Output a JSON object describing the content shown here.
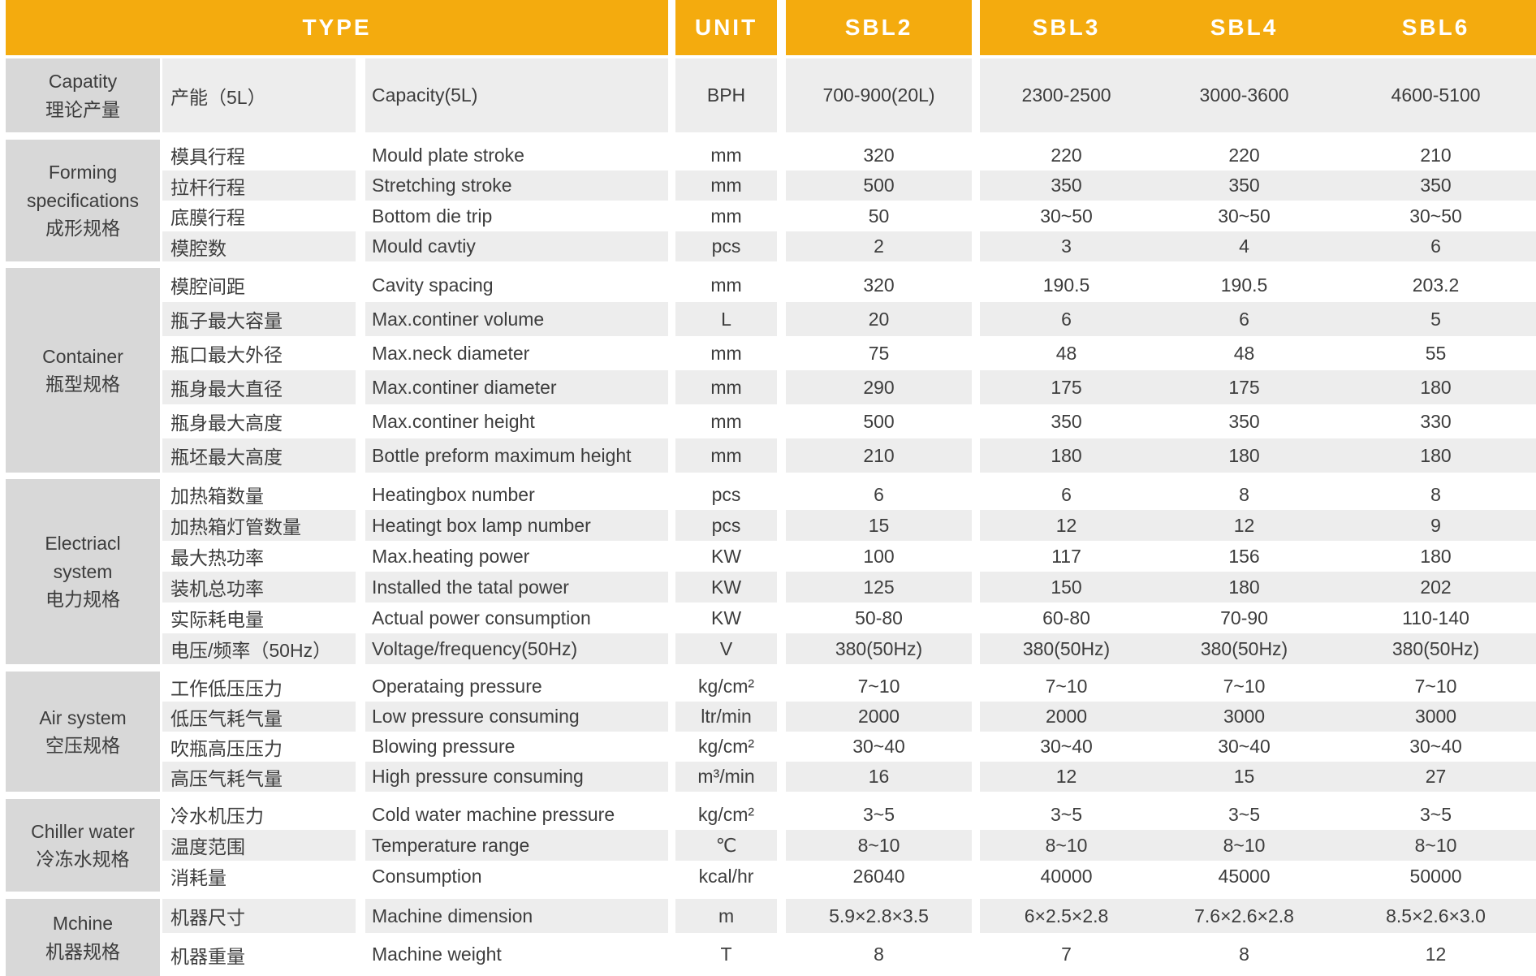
{
  "colors": {
    "accent": "#F4AB0E",
    "category_bg": "#D8D8D8",
    "row_stripe_bg": "#EDEDED",
    "header_text": "#FFFFFF",
    "body_text": "#3D3D3D"
  },
  "header": {
    "type_label": "TYPE",
    "unit_label": "UNIT",
    "models": [
      "SBL2",
      "SBL3",
      "SBL4",
      "SBL6"
    ]
  },
  "groups": [
    {
      "name_en": "Capatity",
      "name_cn": "理论产量",
      "rows": [
        {
          "cn": "产能（5L）",
          "en": "Capacity(5L)",
          "unit": "BPH",
          "values": [
            "700-900(20L)",
            "2300-2500",
            "3000-3600",
            "4600-5100"
          ]
        }
      ]
    },
    {
      "name_en": "Forming specifications",
      "name_cn": "成形规格",
      "rows": [
        {
          "cn": "模具行程",
          "en": "Mould plate stroke",
          "unit": "mm",
          "values": [
            "320",
            "220",
            "220",
            "210"
          ]
        },
        {
          "cn": "拉杆行程",
          "en": "Stretching stroke",
          "unit": "mm",
          "values": [
            "500",
            "350",
            "350",
            "350"
          ]
        },
        {
          "cn": "底膜行程",
          "en": "Bottom die trip",
          "unit": "mm",
          "values": [
            "50",
            "30~50",
            "30~50",
            "30~50"
          ]
        },
        {
          "cn": "模腔数",
          "en": "Mould cavtiy",
          "unit": "pcs",
          "values": [
            "2",
            "3",
            "4",
            "6"
          ]
        }
      ]
    },
    {
      "name_en": "Container",
      "name_cn": "瓶型规格",
      "rows": [
        {
          "cn": "模腔间距",
          "en": "Cavity spacing",
          "unit": "mm",
          "values": [
            "320",
            "190.5",
            "190.5",
            "203.2"
          ]
        },
        {
          "cn": "瓶子最大容量",
          "en": "Max.continer volume",
          "unit": "L",
          "values": [
            "20",
            "6",
            "6",
            "5"
          ]
        },
        {
          "cn": "瓶口最大外径",
          "en": "Max.neck diameter",
          "unit": "mm",
          "values": [
            "75",
            "48",
            "48",
            "55"
          ]
        },
        {
          "cn": "瓶身最大直径",
          "en": "Max.continer diameter",
          "unit": "mm",
          "values": [
            "290",
            "175",
            "175",
            "180"
          ]
        },
        {
          "cn": "瓶身最大高度",
          "en": "Max.continer height",
          "unit": "mm",
          "values": [
            "500",
            "350",
            "350",
            "330"
          ]
        },
        {
          "cn": "瓶坯最大高度",
          "en": "Bottle preform maximum height",
          "unit": "mm",
          "values": [
            "210",
            "180",
            "180",
            "180"
          ]
        }
      ]
    },
    {
      "name_en": "Electriacl system",
      "name_cn": "电力规格",
      "rows": [
        {
          "cn": "加热箱数量",
          "en": "Heatingbox number",
          "unit": "pcs",
          "values": [
            "6",
            "6",
            "8",
            "8"
          ]
        },
        {
          "cn": "加热箱灯管数量",
          "en": "Heatingt box lamp number",
          "unit": "pcs",
          "values": [
            "15",
            "12",
            "12",
            "9"
          ]
        },
        {
          "cn": "最大热功率",
          "en": "Max.heating power",
          "unit": "KW",
          "values": [
            "100",
            "117",
            "156",
            "180"
          ]
        },
        {
          "cn": "装机总功率",
          "en": "Installed the tatal power",
          "unit": "KW",
          "values": [
            "125",
            "150",
            "180",
            "202"
          ]
        },
        {
          "cn": "实际耗电量",
          "en": "Actual power consumption",
          "unit": "KW",
          "values": [
            "50-80",
            "60-80",
            "70-90",
            "110-140"
          ]
        },
        {
          "cn": "电压/频率（50Hz）",
          "en": "Voltage/frequency(50Hz)",
          "unit": "V",
          "values": [
            "380(50Hz)",
            "380(50Hz)",
            "380(50Hz)",
            "380(50Hz)"
          ]
        }
      ]
    },
    {
      "name_en": "Air system",
      "name_cn": "空压规格",
      "rows": [
        {
          "cn": "工作低压压力",
          "en": "Operataing pressure",
          "unit": "kg/cm²",
          "values": [
            "7~10",
            "7~10",
            "7~10",
            "7~10"
          ]
        },
        {
          "cn": "低压气耗气量",
          "en": "Low pressure consuming",
          "unit": "ltr/min",
          "values": [
            "2000",
            "2000",
            "3000",
            "3000"
          ]
        },
        {
          "cn": "吹瓶高压压力",
          "en": "Blowing pressure",
          "unit": "kg/cm²",
          "values": [
            "30~40",
            "30~40",
            "30~40",
            "30~40"
          ]
        },
        {
          "cn": "高压气耗气量",
          "en": "High pressure consuming",
          "unit": "m³/min",
          "values": [
            "16",
            "12",
            "15",
            "27"
          ]
        }
      ]
    },
    {
      "name_en": "Chiller water",
      "name_cn": "冷冻水规格",
      "rows": [
        {
          "cn": "冷水机压力",
          "en": "Cold water machine pressure",
          "unit": "kg/cm²",
          "values": [
            "3~5",
            "3~5",
            "3~5",
            "3~5"
          ]
        },
        {
          "cn": "温度范围",
          "en": "Temperature range",
          "unit": "℃",
          "values": [
            "8~10",
            "8~10",
            "8~10",
            "8~10"
          ]
        },
        {
          "cn": "消耗量",
          "en": "Consumption",
          "unit": "kcal/hr",
          "values": [
            "26040",
            "40000",
            "45000",
            "50000"
          ]
        }
      ]
    },
    {
      "name_en": "Mchine",
      "name_cn": "机器规格",
      "rows": [
        {
          "cn": "机器尺寸",
          "en": "Machine dimension",
          "unit": "m",
          "values": [
            "5.9×2.8×3.5",
            "6×2.5×2.8",
            "7.6×2.6×2.8",
            "8.5×2.6×3.0"
          ]
        },
        {
          "cn": "机器重量",
          "en": "Machine weight",
          "unit": "T",
          "values": [
            "8",
            "7",
            "8",
            "12"
          ]
        }
      ]
    }
  ]
}
